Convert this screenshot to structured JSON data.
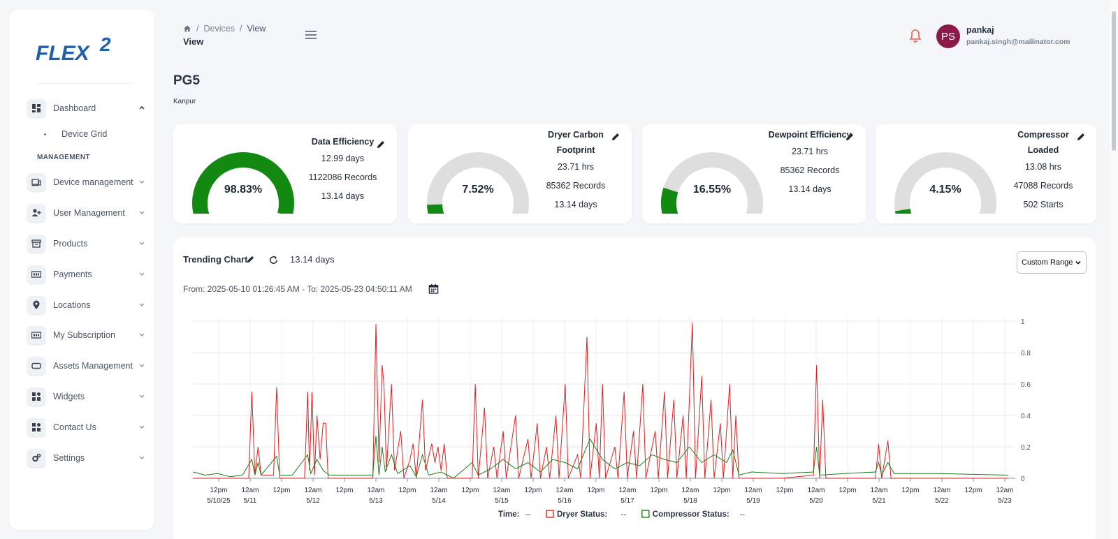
{
  "brand": {
    "logo_text": "FLEX",
    "logo_super": "2"
  },
  "sidebar": {
    "items": [
      {
        "label": "Dashboard",
        "icon": "dashboard-icon"
      },
      {
        "label": "Device management",
        "icon": "device-icon"
      },
      {
        "label": "User Management",
        "icon": "user-add-icon"
      },
      {
        "label": "Products",
        "icon": "archive-icon"
      },
      {
        "label": "Payments",
        "icon": "payment-icon"
      },
      {
        "label": "Locations",
        "icon": "location-pin-icon"
      },
      {
        "label": "My Subscription",
        "icon": "subscription-icon"
      },
      {
        "label": "Assets Management",
        "icon": "asset-icon"
      },
      {
        "label": "Widgets",
        "icon": "widgets-icon"
      },
      {
        "label": "Contact Us",
        "icon": "contact-icon"
      },
      {
        "label": "Settings",
        "icon": "gear-icon"
      }
    ],
    "sub_item": "Device Grid",
    "section_label": "MANAGEMENT"
  },
  "header": {
    "breadcrumb": [
      "Devices",
      "View"
    ],
    "title": "View",
    "user": {
      "initials": "PS",
      "name": "pankaj",
      "email": "pankaj.singh@mailinator.com"
    }
  },
  "page": {
    "title": "PG5",
    "subtitle": "Kanpur"
  },
  "cards": [
    {
      "title": "Data Efficiency",
      "value": "98.83%",
      "percent": 98.83,
      "lines": [
        "12.99 days",
        "1122086 Records",
        "13.14 days"
      ]
    },
    {
      "title": "Dryer Carbon Footprint",
      "value": "7.52%",
      "percent": 7.52,
      "lines": [
        "23.71 hrs",
        "85362 Records",
        "13.14 days"
      ]
    },
    {
      "title": "Dewpoint Efficiency",
      "value": "16.55%",
      "percent": 16.55,
      "lines": [
        "23.71 hrs",
        "85362 Records",
        "13.14 days"
      ]
    },
    {
      "title": "Compressor Loaded",
      "value": "4.15%",
      "percent": 4.15,
      "lines": [
        "13.08 hrs",
        "47088 Records",
        "502 Starts"
      ]
    }
  ],
  "colors": {
    "gauge_fill": "#128a12",
    "gauge_track": "#dedede",
    "dryer": "#e02020",
    "compressor": "#1a7d1a",
    "avatar": "#8b1a4a"
  },
  "trending": {
    "title": "Trending Chart",
    "duration": "13.14 days",
    "range_option": "Custom Range",
    "date_range": "From: 2025-05-10 01:26:45 AM - To: 2025-05-23 04:50:11 AM"
  },
  "chart_data": {
    "type": "line",
    "x_ticks": [
      [
        "12pm",
        "5/10/25"
      ],
      [
        "12am",
        "5/11"
      ],
      [
        "12pm",
        ""
      ],
      [
        "12am",
        "5/12"
      ],
      [
        "12pm",
        ""
      ],
      [
        "12am",
        "5/13"
      ],
      [
        "12pm",
        ""
      ],
      [
        "12am",
        "5/14"
      ],
      [
        "12pm",
        ""
      ],
      [
        "12am",
        "5/15"
      ],
      [
        "12pm",
        ""
      ],
      [
        "12am",
        "5/16"
      ],
      [
        "12pm",
        ""
      ],
      [
        "12am",
        "5/17"
      ],
      [
        "12pm",
        ""
      ],
      [
        "12am",
        "5/18"
      ],
      [
        "12pm",
        ""
      ],
      [
        "12am",
        "5/19"
      ],
      [
        "12pm",
        ""
      ],
      [
        "12am",
        "5/20"
      ],
      [
        "12pm",
        ""
      ],
      [
        "12am",
        "5/21"
      ],
      [
        "12pm",
        ""
      ],
      [
        "12am",
        "5/22"
      ],
      [
        "12pm",
        ""
      ],
      [
        "12am",
        "5/23"
      ]
    ],
    "y_ticks": [
      "1",
      "0.8",
      "0.6",
      "0.4",
      "0.2",
      "0"
    ],
    "ylim": [
      0,
      1
    ],
    "xlim_days": [
      0,
      13.14
    ],
    "legend": [
      {
        "label": "Time:",
        "value": "--"
      },
      {
        "label": "Dryer Status:",
        "value": "--"
      },
      {
        "label": "Compressor Status:",
        "value": "--"
      }
    ],
    "series": [
      {
        "name": "Dryer Status",
        "points": [
          [
            0,
            0
          ],
          [
            0.9,
            0
          ],
          [
            0.95,
            0.55
          ],
          [
            1.0,
            0.02
          ],
          [
            1.05,
            0.2
          ],
          [
            1.1,
            0.02
          ],
          [
            1.3,
            0.02
          ],
          [
            1.35,
            0.58
          ],
          [
            1.4,
            0
          ],
          [
            1.8,
            0
          ],
          [
            1.85,
            0.55
          ],
          [
            1.88,
            0.05
          ],
          [
            1.92,
            0.55
          ],
          [
            1.96,
            0.02
          ],
          [
            2.0,
            0.4
          ],
          [
            2.05,
            0.12
          ],
          [
            2.1,
            0.35
          ],
          [
            2.14,
            0.35
          ],
          [
            2.18,
            0
          ],
          [
            2.9,
            0
          ],
          [
            2.95,
            0.98
          ],
          [
            3.0,
            0.1
          ],
          [
            3.05,
            0.72
          ],
          [
            3.08,
            0.6
          ],
          [
            3.12,
            0.05
          ],
          [
            3.2,
            0.6
          ],
          [
            3.25,
            0.05
          ],
          [
            3.35,
            0.3
          ],
          [
            3.4,
            0
          ],
          [
            3.5,
            0.12
          ],
          [
            3.55,
            0.22
          ],
          [
            3.6,
            0
          ],
          [
            3.7,
            0.5
          ],
          [
            3.75,
            0.05
          ],
          [
            3.85,
            0.22
          ],
          [
            3.9,
            0.1
          ],
          [
            3.95,
            0.2
          ],
          [
            4.0,
            0.05
          ],
          [
            4.05,
            0.22
          ],
          [
            4.1,
            0
          ],
          [
            4.5,
            0
          ],
          [
            4.55,
            0.6
          ],
          [
            4.6,
            0
          ],
          [
            4.7,
            0.45
          ],
          [
            4.75,
            0
          ],
          [
            4.85,
            0.2
          ],
          [
            4.9,
            0
          ],
          [
            5.0,
            0.3
          ],
          [
            5.05,
            0
          ],
          [
            5.2,
            0.4
          ],
          [
            5.25,
            0
          ],
          [
            5.4,
            0.25
          ],
          [
            5.45,
            0
          ],
          [
            5.55,
            0.35
          ],
          [
            5.6,
            0
          ],
          [
            5.7,
            0.2
          ],
          [
            5.75,
            0
          ],
          [
            5.85,
            0.4
          ],
          [
            5.9,
            0
          ],
          [
            6.0,
            0.6
          ],
          [
            6.05,
            0
          ],
          [
            6.2,
            0.15
          ],
          [
            6.25,
            0
          ],
          [
            6.35,
            0.9
          ],
          [
            6.4,
            0
          ],
          [
            6.5,
            0.35
          ],
          [
            6.55,
            0
          ],
          [
            6.6,
            0.6
          ],
          [
            6.65,
            0
          ],
          [
            6.8,
            0.2
          ],
          [
            6.85,
            0
          ],
          [
            6.95,
            0.55
          ],
          [
            7.0,
            0
          ],
          [
            7.1,
            0.3
          ],
          [
            7.15,
            0
          ],
          [
            7.25,
            0.6
          ],
          [
            7.3,
            0
          ],
          [
            7.45,
            0.3
          ],
          [
            7.5,
            0
          ],
          [
            7.6,
            0.55
          ],
          [
            7.65,
            0
          ],
          [
            7.75,
            0.5
          ],
          [
            7.8,
            0
          ],
          [
            7.9,
            0.4
          ],
          [
            7.95,
            0
          ],
          [
            8.05,
            0.99
          ],
          [
            8.1,
            0
          ],
          [
            8.2,
            0.65
          ],
          [
            8.25,
            0
          ],
          [
            8.35,
            0.5
          ],
          [
            8.4,
            0
          ],
          [
            8.5,
            0.35
          ],
          [
            8.55,
            0
          ],
          [
            8.65,
            0.6
          ],
          [
            8.7,
            0
          ],
          [
            8.75,
            0.4
          ],
          [
            8.8,
            0
          ],
          [
            8.9,
            0
          ],
          [
            9.0,
            0
          ],
          [
            9.5,
            0
          ],
          [
            10.0,
            0.02
          ],
          [
            10.05,
            0.72
          ],
          [
            10.1,
            0
          ],
          [
            10.15,
            0.5
          ],
          [
            10.2,
            0
          ],
          [
            10.5,
            0
          ],
          [
            11.0,
            0
          ],
          [
            11.05,
            0.22
          ],
          [
            11.1,
            0
          ],
          [
            11.2,
            0.24
          ],
          [
            11.25,
            0
          ],
          [
            13.14,
            0
          ]
        ]
      },
      {
        "name": "Compressor Status",
        "points": [
          [
            0,
            0.04
          ],
          [
            0.2,
            0.02
          ],
          [
            0.4,
            0.03
          ],
          [
            0.6,
            0.01
          ],
          [
            0.8,
            0.02
          ],
          [
            0.95,
            0.12
          ],
          [
            1.0,
            0.02
          ],
          [
            1.05,
            0.1
          ],
          [
            1.1,
            0.02
          ],
          [
            1.35,
            0.14
          ],
          [
            1.4,
            0.02
          ],
          [
            1.6,
            0.02
          ],
          [
            1.85,
            0.15
          ],
          [
            1.9,
            0.03
          ],
          [
            2.0,
            0.12
          ],
          [
            2.1,
            0.05
          ],
          [
            2.2,
            0.02
          ],
          [
            2.9,
            0.02
          ],
          [
            2.95,
            0.27
          ],
          [
            3.0,
            0.02
          ],
          [
            3.05,
            0.2
          ],
          [
            3.1,
            0.04
          ],
          [
            3.2,
            0.15
          ],
          [
            3.3,
            0.03
          ],
          [
            3.5,
            0.08
          ],
          [
            3.6,
            0.01
          ],
          [
            3.7,
            0.15
          ],
          [
            3.8,
            0.02
          ],
          [
            4.0,
            0.04
          ],
          [
            4.2,
            0
          ],
          [
            4.5,
            0.1
          ],
          [
            4.6,
            0.02
          ],
          [
            4.8,
            0.06
          ],
          [
            5.0,
            0.12
          ],
          [
            5.2,
            0.06
          ],
          [
            5.4,
            0.1
          ],
          [
            5.6,
            0.04
          ],
          [
            5.8,
            0.12
          ],
          [
            6.0,
            0.1
          ],
          [
            6.2,
            0.06
          ],
          [
            6.4,
            0.25
          ],
          [
            6.6,
            0.12
          ],
          [
            6.8,
            0.06
          ],
          [
            7.0,
            0.1
          ],
          [
            7.2,
            0.08
          ],
          [
            7.4,
            0.15
          ],
          [
            7.6,
            0.12
          ],
          [
            7.8,
            0.1
          ],
          [
            8.0,
            0.2
          ],
          [
            8.2,
            0.1
          ],
          [
            8.4,
            0.15
          ],
          [
            8.6,
            0.1
          ],
          [
            8.7,
            0.18
          ],
          [
            8.8,
            0.02
          ],
          [
            9.0,
            0.04
          ],
          [
            9.5,
            0.03
          ],
          [
            10.0,
            0.04
          ],
          [
            10.05,
            0.2
          ],
          [
            10.1,
            0.02
          ],
          [
            10.5,
            0.03
          ],
          [
            11.0,
            0.04
          ],
          [
            11.05,
            0.1
          ],
          [
            11.1,
            0.02
          ],
          [
            11.2,
            0.1
          ],
          [
            11.3,
            0.03
          ],
          [
            12.0,
            0.03
          ],
          [
            13.14,
            0.02
          ]
        ]
      }
    ]
  }
}
